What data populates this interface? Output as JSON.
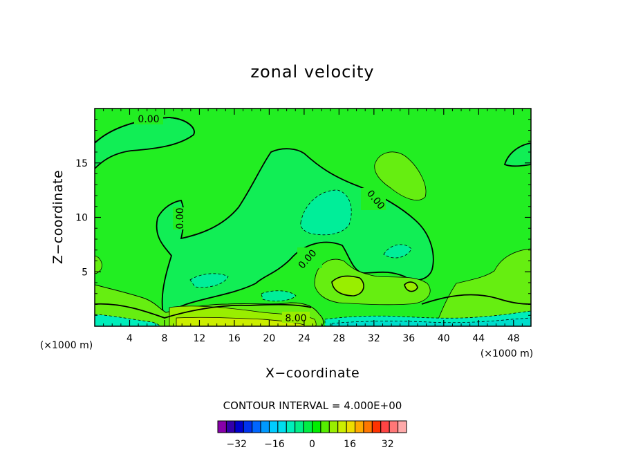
{
  "chart_data": {
    "type": "heatmap",
    "title": "zonal velocity",
    "xlabel": "X−coordinate",
    "ylabel": "Z−coordinate",
    "x_unit": "(×1000 m)",
    "y_unit": "(×1000 m)",
    "xlim": [
      0,
      50
    ],
    "ylim": [
      0,
      20
    ],
    "xticks": [
      4,
      8,
      12,
      16,
      20,
      24,
      28,
      32,
      36,
      40,
      44,
      48
    ],
    "xtick_labels": [
      "4",
      "8",
      "12",
      "16",
      "20",
      "24",
      "28",
      "32",
      "36",
      "40",
      "44",
      "48"
    ],
    "yticks": [
      5,
      10,
      15
    ],
    "ytick_labels": [
      "5",
      "10",
      "15"
    ],
    "contour_interval_text": "CONTOUR INTERVAL =  4.000E+00",
    "contour_interval": 4.0,
    "contour_labels": [
      "0.00",
      "0.00",
      "0.00",
      "0.00",
      "8.00"
    ],
    "colorbar": {
      "min": -40,
      "max": 40,
      "step": 4,
      "ticks": [
        -32,
        -16,
        0,
        16,
        32
      ],
      "tick_labels": [
        "−32",
        "−16",
        "0",
        "16",
        "32"
      ],
      "colors": [
        "#8800aa",
        "#3300aa",
        "#0000cc",
        "#0033ee",
        "#0066ff",
        "#0099ff",
        "#00ccff",
        "#00ddee",
        "#00eebb",
        "#00ee88",
        "#00ee44",
        "#00ee00",
        "#55ee00",
        "#99ee00",
        "#ccee00",
        "#eedd00",
        "#ffaa00",
        "#ff7700",
        "#ff3300",
        "#ff4444",
        "#ff7777",
        "#ffaaaa"
      ]
    },
    "field_colors": {
      "background": "#22ee22",
      "negative_light": "#11ee55",
      "negative_mid": "#00ee99",
      "negative_strong": "#00ddcc",
      "positive_light": "#66ee11",
      "positive_mid": "#99ee00",
      "positive_strong": "#ccee00"
    }
  }
}
